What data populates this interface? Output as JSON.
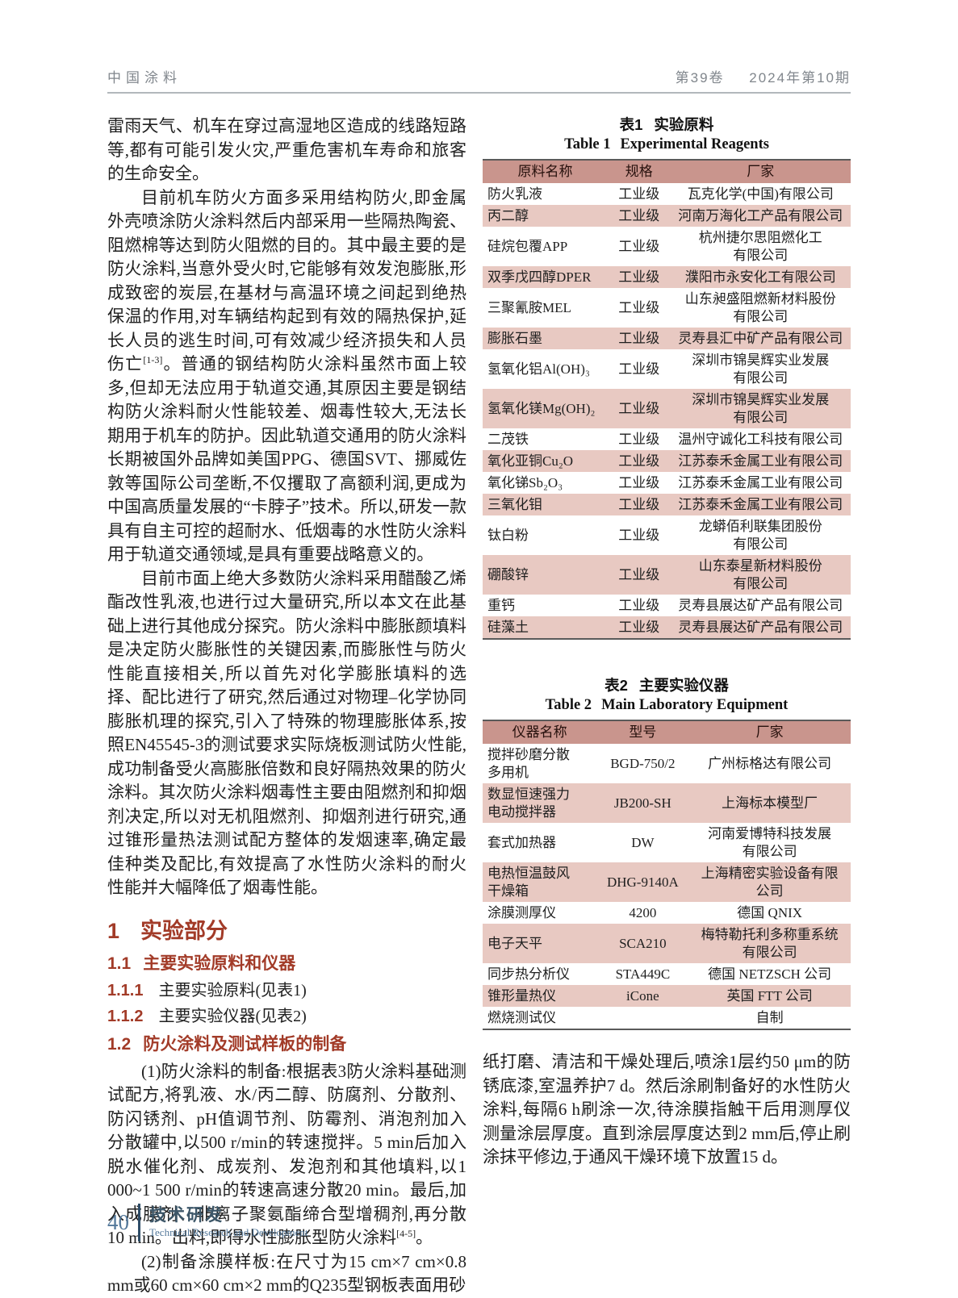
{
  "colors": {
    "heading_red": "#a23b28",
    "table_header_bg": "#c9958d",
    "table_alt_row_bg": "#e8c9c2",
    "footer_blue": "#53789a",
    "footer_dark": "#3c5668",
    "header_gray": "#80868c"
  },
  "header": {
    "journal": "中国涂料",
    "volume": "第39卷",
    "issue": "2024年第10期"
  },
  "left_column": {
    "blocks": [
      {
        "type": "p",
        "indent": false,
        "segments": [
          {
            "t": "雷雨天气、机车在穿过高湿地区造成的线路短路等,都有可能引发火灾,严重危害机车寿命和旅客的生命安全。"
          }
        ]
      },
      {
        "type": "p",
        "indent": true,
        "segments": [
          {
            "t": "目前机车防火方面多采用结构防火,即金属外壳喷涂防火涂料然后内部采用一些隔热陶瓷、阻燃棉等达到防火阻燃的目的。其中最主要的是防火涂料,当意外受火时,它能够有效发泡膨胀,形成致密的炭层,在基材与高温环境之间起到绝热保温的作用,对车辆结构起到有效的隔热保护,延长人员的逃生时间,可有效减少经济损失和人员伤亡"
          },
          {
            "t": "[1-3]",
            "sup": true
          },
          {
            "t": "。普通的钢结构防火涂料虽然市面上较多,但却无法应用于轨道交通,其原因主要是钢结构防火涂料耐火性能较差、烟毒性较大,无法长期用于机车的防护。因此轨道交通用的防火涂料长期被国外品牌如美国PPG、德国SVT、挪威佐敦等国际公司垄断,不仅攫取了高额利润,更成为中国高质量发展的“卡脖子”技术。所以,研发一款具有自主可控的超耐水、低烟毒的水性防火涂料用于轨道交通领域,是具有重要战略意义的。"
          }
        ]
      },
      {
        "type": "p",
        "indent": true,
        "segments": [
          {
            "t": "目前市面上绝大多数防火涂料采用醋酸乙烯酯改性乳液,也进行过大量研究,所以本文在此基础上进行其他成分探究。防火涂料中膨胀颜填料是决定防火膨胀性的关键因素,而膨胀性与防火性能直接相关,所以首先对化学膨胀填料的选择、配比进行了研究,然后通过对物理–化学协同膨胀机理的探究,引入了特殊的物理膨胀体系,按照EN45545-3的测试要求实际烧板测试防火性能,成功制备受火高膨胀倍数和良好隔热效果的防火涂料。其次防火涂料烟毒性主要由阻燃剂和抑烟剂决定,所以对无机阻燃剂、抑烟剂进行研究,通过锥形量热法测试配方整体的发烟速率,确定最佳种类及配比,有效提高了水性防火涂料的耐火性能并大幅降低了烟毒性能。"
          }
        ]
      },
      {
        "type": "h1",
        "num": "1",
        "text": "实验部分"
      },
      {
        "type": "h2",
        "num": "1.1",
        "text": "主要实验原料和仪器"
      },
      {
        "type": "h3",
        "num": "1.1.1",
        "text": "主要实验原料(见表1)"
      },
      {
        "type": "h3",
        "num": "1.1.2",
        "text": "主要实验仪器(见表2)"
      },
      {
        "type": "h2",
        "num": "1.2",
        "text": "防火涂料及测试样板的制备"
      },
      {
        "type": "p",
        "indent": true,
        "segments": [
          {
            "t": "(1)防火涂料的制备:根据表3防火涂料基础测试配方,将乳液、水/丙二醇、防腐剂、分散剂、防闪锈剂、pH值调节剂、防霉剂、消泡剂加入分散罐中,以500 r/min的转速搅拌。5 min后加入脱水催化剂、成炭剂、发泡剂和其他填料,以1 000~1 500 r/min的转速高速分散20 min。最后,加入成膜剂、非离子聚氨酯缔合型增稠剂,再分散10 min。出料,即得水性膨胀型防火涂料"
          },
          {
            "t": "[4-5]",
            "sup": true
          },
          {
            "t": "。"
          }
        ]
      },
      {
        "type": "p",
        "indent": true,
        "segments": [
          {
            "t": "(2)制备涂膜样板:在尺寸为15 cm×7 cm×0.8 mm或60 cm×60 cm×2 mm的Q235型钢板表面用砂"
          }
        ]
      }
    ]
  },
  "table1": {
    "label_zh": "表1",
    "title_zh": "实验原料",
    "label_en": "Table 1",
    "title_en": "Experimental Reagents",
    "headers": [
      "原料名称",
      "规格",
      "厂家"
    ],
    "rows": [
      [
        "防火乳液",
        "工业级",
        "瓦克化学(中国)有限公司"
      ],
      [
        "丙二醇",
        "工业级",
        "河南万海化工产品有限公司"
      ],
      [
        "硅烷包覆APP",
        "工业级",
        "杭州捷尔思阻燃化工\n有限公司"
      ],
      [
        "双季戊四醇DPER",
        "工业级",
        "濮阳市永安化工有限公司"
      ],
      [
        "三聚氰胺MEL",
        "工业级",
        "山东昶盛阻燃新材料股份\n有限公司"
      ],
      [
        "膨胀石墨",
        "工业级",
        "灵寿县汇中矿产品有限公司"
      ],
      [
        "氢氧化铝Al(OH)₃",
        "工业级",
        "深圳市锦昊辉实业发展\n有限公司"
      ],
      [
        "氢氧化镁Mg(OH)₂",
        "工业级",
        "深圳市锦昊辉实业发展\n有限公司"
      ],
      [
        "二茂铁",
        "工业级",
        "温州守诚化工科技有限公司"
      ],
      [
        "氧化亚铜Cu₂O",
        "工业级",
        "江苏泰禾金属工业有限公司"
      ],
      [
        "氧化锑Sb₂O₃",
        "工业级",
        "江苏泰禾金属工业有限公司"
      ],
      [
        "三氧化钼",
        "工业级",
        "江苏泰禾金属工业有限公司"
      ],
      [
        "钛白粉",
        "工业级",
        "龙蟒佰利联集团股份\n有限公司"
      ],
      [
        "硼酸锌",
        "工业级",
        "山东泰星新材料股份\n有限公司"
      ],
      [
        "重钙",
        "工业级",
        "灵寿县展达矿产品有限公司"
      ],
      [
        "硅藻土",
        "工业级",
        "灵寿县展达矿产品有限公司"
      ]
    ]
  },
  "table2": {
    "label_zh": "表2",
    "title_zh": "主要实验仪器",
    "label_en": "Table 2",
    "title_en": "Main Laboratory Equipment",
    "headers": [
      "仪器名称",
      "型号",
      "厂家"
    ],
    "rows": [
      [
        "搅拌砂磨分散\n多用机",
        "BGD-750/2",
        "广州标格达有限公司"
      ],
      [
        "数显恒速强力\n电动搅拌器",
        "JB200-SH",
        "上海标本模型厂"
      ],
      [
        "套式加热器",
        "DW",
        "河南爱博特科技发展\n有限公司"
      ],
      [
        "电热恒温鼓风\n干燥箱",
        "DHG-9140A",
        "上海精密实验设备有限\n公司"
      ],
      [
        "涂膜测厚仪",
        "4200",
        "德国 QNIX"
      ],
      [
        "电子天平",
        "SCA210",
        "梅特勒托利多称重系统\n有限公司"
      ],
      [
        "同步热分析仪",
        "STA449C",
        "德国 NETZSCH 公司"
      ],
      [
        "锥形量热仪",
        "iCone",
        "英国 FTT 公司"
      ],
      [
        "燃烧测试仪",
        "",
        "自制"
      ]
    ]
  },
  "right_column": {
    "p1": "纸打磨、清洁和干燥处理后,喷涂1层约50 μm的防锈底漆,室温养护7 d。然后涂刷制备好的水性防火涂料,每隔6 h刷涂一次,待涂膜指触干后用测厚仪测量涂层厚度。直到涂层厚度达到2 mm后,停止刷涂抹平修边,于通风干燥环境下放置15 d。"
  },
  "footer": {
    "page_number": "40",
    "section_zh": "技术研发",
    "section_en": "Technical Research and Development"
  }
}
